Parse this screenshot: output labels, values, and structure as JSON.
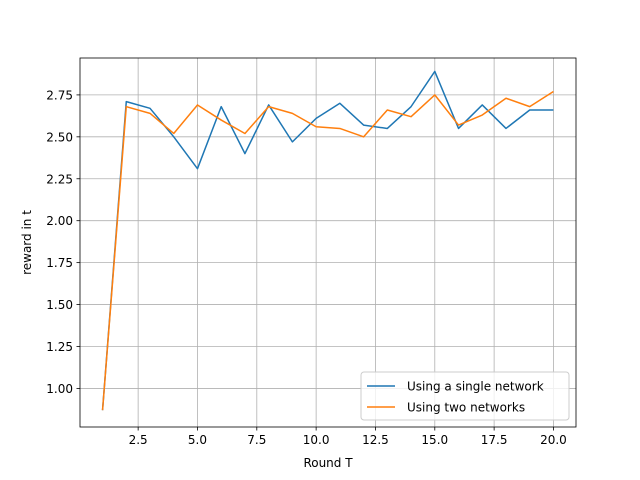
{
  "chart_data": {
    "type": "line",
    "title": "",
    "xlabel": "Round T",
    "ylabel": "reward in t",
    "xlim": [
      0.05,
      20.95
    ],
    "ylim": [
      0.77,
      2.97
    ],
    "grid": true,
    "legend_position": "lower right",
    "x_ticks": [
      2.5,
      5.0,
      7.5,
      10.0,
      12.5,
      15.0,
      17.5,
      20.0
    ],
    "x_tick_labels": [
      "2.5",
      "5.0",
      "7.5",
      "10.0",
      "12.5",
      "15.0",
      "17.5",
      "20.0"
    ],
    "y_ticks": [
      1.0,
      1.25,
      1.5,
      1.75,
      2.0,
      2.25,
      2.5,
      2.75
    ],
    "y_tick_labels": [
      "1.00",
      "1.25",
      "1.50",
      "1.75",
      "2.00",
      "2.25",
      "2.50",
      "2.75"
    ],
    "x": [
      1,
      2,
      3,
      4,
      5,
      6,
      7,
      8,
      9,
      10,
      11,
      12,
      13,
      14,
      15,
      16,
      17,
      18,
      19,
      20
    ],
    "series": [
      {
        "name": "Using a single network",
        "color": "#1f77b4",
        "values": [
          0.87,
          2.71,
          2.67,
          2.5,
          2.31,
          2.68,
          2.4,
          2.69,
          2.47,
          2.61,
          2.7,
          2.57,
          2.55,
          2.68,
          2.89,
          2.55,
          2.69,
          2.55,
          2.66,
          2.66
        ]
      },
      {
        "name": "Using two networks",
        "color": "#ff7f0e",
        "values": [
          0.87,
          2.68,
          2.64,
          2.52,
          2.69,
          2.6,
          2.52,
          2.68,
          2.64,
          2.56,
          2.55,
          2.5,
          2.66,
          2.62,
          2.75,
          2.57,
          2.63,
          2.73,
          2.68,
          2.77
        ]
      }
    ]
  }
}
